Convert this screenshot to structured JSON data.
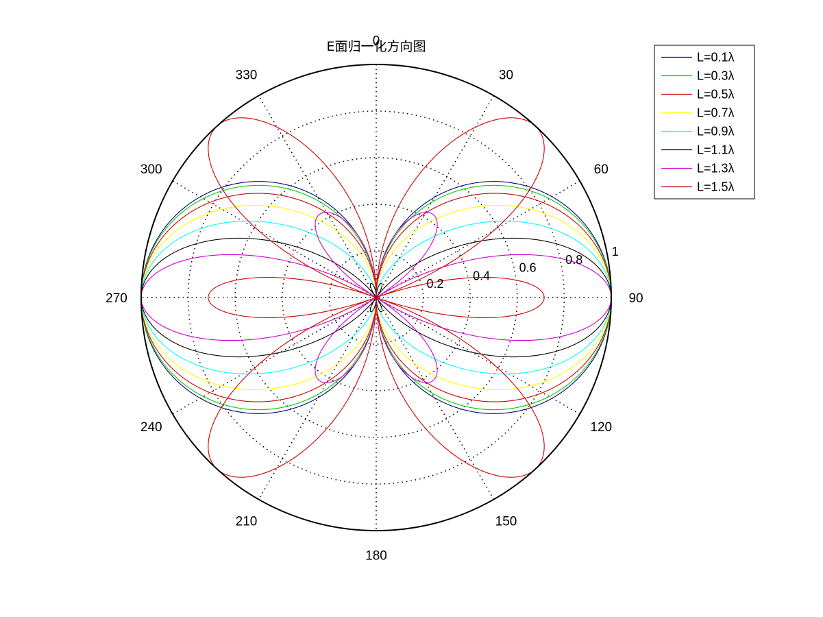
{
  "chart_data": {
    "type": "polar-line",
    "title": "E面归一化方向图",
    "theta_zero_location": "top",
    "theta_direction": "clockwise",
    "theta_unit": "degrees",
    "angular_ticks": [
      "0",
      "30",
      "60",
      "90",
      "120",
      "150",
      "180",
      "210",
      "240",
      "270",
      "300",
      "330"
    ],
    "radial_ticks": [
      "0.2",
      "0.4",
      "0.6",
      "0.8",
      "1"
    ],
    "rlim": [
      0,
      1
    ],
    "grid": true,
    "legend_placement": "top-right",
    "formula": "normalized |(cos(pi*L*cos(theta)) - cos(pi*L)) / sin(theta)|",
    "series": [
      {
        "name": "L=0.1λ",
        "L": 0.1,
        "color": "#00007f"
      },
      {
        "name": "L=0.3λ",
        "L": 0.3,
        "color": "#00cc00"
      },
      {
        "name": "L=0.5λ",
        "L": 0.5,
        "color": "#cc0000"
      },
      {
        "name": "L=0.7λ",
        "L": 0.7,
        "color": "#ffff00"
      },
      {
        "name": "L=0.9λ",
        "L": 0.9,
        "color": "#00ffff"
      },
      {
        "name": "L=1.1λ",
        "L": 1.1,
        "color": "#000000"
      },
      {
        "name": "L=1.3λ",
        "L": 1.3,
        "color": "#cc00cc"
      },
      {
        "name": "L=1.5λ",
        "L": 1.5,
        "color": "#cc0000"
      }
    ]
  }
}
